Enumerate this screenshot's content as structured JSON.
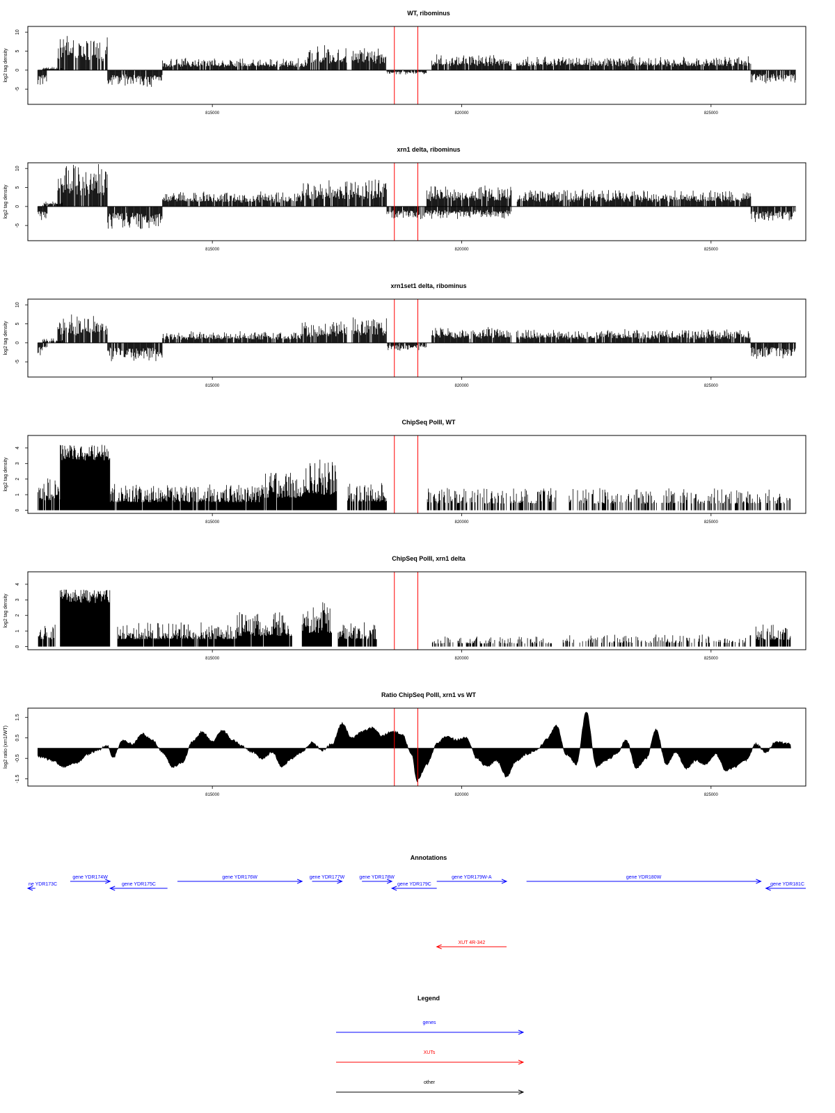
{
  "chart_data": [
    {
      "type": "bar",
      "title": "WT, ribominus",
      "ylabel": "log2 tag density",
      "ylim": [
        -9,
        11.5
      ],
      "yticks": [
        -5,
        0,
        5,
        10
      ],
      "ytick_labels": [
        "-5",
        "0",
        "5",
        "10"
      ],
      "xlim": [
        811300,
        826900
      ],
      "xticks": [
        815000,
        820000,
        825000
      ],
      "xtick_labels": [
        "815000",
        "820000",
        "825000"
      ],
      "markers": [
        818650,
        819120
      ],
      "marker_color": "#ff0000",
      "bar_color": "#000000",
      "forward_segments": [
        {
          "start": 811600,
          "end": 812000,
          "level": 0.6
        },
        {
          "start": 811900,
          "end": 812900,
          "level": 6.5
        },
        {
          "start": 814000,
          "end": 816900,
          "level": 2.2
        },
        {
          "start": 816900,
          "end": 817700,
          "level": 4.8
        },
        {
          "start": 817800,
          "end": 818500,
          "level": 4.8
        },
        {
          "start": 819400,
          "end": 821000,
          "level": 3.0
        },
        {
          "start": 821100,
          "end": 825800,
          "level": 2.6
        }
      ],
      "reverse_segments": [
        {
          "start": 811500,
          "end": 811700,
          "level": -3.0
        },
        {
          "start": 812900,
          "end": 814000,
          "level": -3.2
        },
        {
          "start": 818500,
          "end": 819300,
          "level": -0.8
        },
        {
          "start": 825800,
          "end": 826700,
          "level": -2.5
        }
      ]
    },
    {
      "type": "bar",
      "title": "xrn1 delta, ribominus",
      "ylabel": "log2 tag density",
      "ylim": [
        -9,
        11.5
      ],
      "yticks": [
        -5,
        0,
        5,
        10
      ],
      "ytick_labels": [
        "-5",
        "0",
        "5",
        "10"
      ],
      "xlim": [
        811300,
        826900
      ],
      "xticks": [
        815000,
        820000,
        825000
      ],
      "xtick_labels": [
        "815000",
        "820000",
        "825000"
      ],
      "markers": [
        818650,
        819120
      ],
      "marker_color": "#ff0000",
      "bar_color": "#000000",
      "forward_segments": [
        {
          "start": 811600,
          "end": 812000,
          "level": 1.0
        },
        {
          "start": 811900,
          "end": 812900,
          "level": 8.0
        },
        {
          "start": 814000,
          "end": 816800,
          "level": 2.8
        },
        {
          "start": 816800,
          "end": 817700,
          "level": 5.0
        },
        {
          "start": 817700,
          "end": 818500,
          "level": 5.2
        },
        {
          "start": 819300,
          "end": 821000,
          "level": 4.0
        },
        {
          "start": 821100,
          "end": 825800,
          "level": 3.2
        }
      ],
      "reverse_segments": [
        {
          "start": 811500,
          "end": 811700,
          "level": -3.0
        },
        {
          "start": 812900,
          "end": 814000,
          "level": -4.5
        },
        {
          "start": 818500,
          "end": 819300,
          "level": -2.5
        },
        {
          "start": 819300,
          "end": 821000,
          "level": -2.5
        },
        {
          "start": 825800,
          "end": 826700,
          "level": -3.0
        }
      ]
    },
    {
      "type": "bar",
      "title": "xrn1set1 delta, ribominus",
      "ylabel": "log2 tag density",
      "ylim": [
        -9,
        11.5
      ],
      "yticks": [
        -5,
        0,
        5,
        10
      ],
      "ytick_labels": [
        "-5",
        "0",
        "5",
        "10"
      ],
      "xlim": [
        811300,
        826900
      ],
      "xticks": [
        815000,
        820000,
        825000
      ],
      "xtick_labels": [
        "815000",
        "820000",
        "825000"
      ],
      "markers": [
        818650,
        819120
      ],
      "marker_color": "#ff0000",
      "bar_color": "#000000",
      "forward_segments": [
        {
          "start": 811600,
          "end": 812000,
          "level": 0.8
        },
        {
          "start": 811900,
          "end": 812900,
          "level": 5.5
        },
        {
          "start": 814000,
          "end": 816800,
          "level": 2.2
        },
        {
          "start": 816800,
          "end": 817700,
          "level": 4.2
        },
        {
          "start": 817800,
          "end": 818500,
          "level": 5.0
        },
        {
          "start": 819400,
          "end": 821000,
          "level": 3.0
        },
        {
          "start": 821100,
          "end": 825800,
          "level": 2.6
        }
      ],
      "reverse_segments": [
        {
          "start": 811500,
          "end": 811700,
          "level": -2.5
        },
        {
          "start": 812900,
          "end": 814000,
          "level": -3.5
        },
        {
          "start": 818500,
          "end": 819300,
          "level": -1.5
        },
        {
          "start": 825800,
          "end": 826700,
          "level": -3.0
        }
      ]
    },
    {
      "type": "bar",
      "title": "ChipSeq PolII, WT",
      "ylabel": "log2 tag density",
      "ylim": [
        -0.2,
        4.8
      ],
      "yticks": [
        0,
        1,
        2,
        3,
        4
      ],
      "ytick_labels": [
        "0",
        "1",
        "2",
        "3",
        "4"
      ],
      "xlim": [
        811300,
        826900
      ],
      "xticks": [
        815000,
        820000,
        825000
      ],
      "xtick_labels": [
        "815000",
        "820000",
        "825000"
      ],
      "markers": [
        818650,
        819120
      ],
      "marker_color": "#ff0000",
      "bar_color": "#000000",
      "segments": [
        {
          "start": 811500,
          "end": 811950,
          "level": 1.6,
          "fill": 0.9
        },
        {
          "start": 811950,
          "end": 812950,
          "level": 4.0,
          "fill": 1.0
        },
        {
          "start": 812950,
          "end": 816000,
          "level": 1.3,
          "fill": 0.95
        },
        {
          "start": 816000,
          "end": 816800,
          "level": 2.0,
          "fill": 0.95
        },
        {
          "start": 816800,
          "end": 817500,
          "level": 2.5,
          "fill": 1.0
        },
        {
          "start": 817700,
          "end": 818500,
          "level": 1.4,
          "fill": 0.75
        },
        {
          "start": 819300,
          "end": 821900,
          "level": 1.1,
          "fill": 0.55
        },
        {
          "start": 822100,
          "end": 826600,
          "level": 1.1,
          "fill": 0.5
        }
      ]
    },
    {
      "type": "bar",
      "title": "ChipSeq PolII, xrn1 delta",
      "ylabel": "log2 tag density",
      "ylim": [
        -0.2,
        4.8
      ],
      "yticks": [
        0,
        1,
        2,
        3,
        4
      ],
      "ytick_labels": [
        "0",
        "1",
        "2",
        "3",
        "4"
      ],
      "xlim": [
        811300,
        826900
      ],
      "xticks": [
        815000,
        820000,
        825000
      ],
      "xtick_labels": [
        "815000",
        "820000",
        "825000"
      ],
      "markers": [
        818650,
        819120
      ],
      "marker_color": "#ff0000",
      "bar_color": "#000000",
      "segments": [
        {
          "start": 811500,
          "end": 811850,
          "level": 1.2,
          "fill": 0.8
        },
        {
          "start": 811950,
          "end": 812950,
          "level": 3.5,
          "fill": 1.0
        },
        {
          "start": 813100,
          "end": 815500,
          "level": 1.2,
          "fill": 0.95
        },
        {
          "start": 815500,
          "end": 816600,
          "level": 1.7,
          "fill": 0.95
        },
        {
          "start": 816800,
          "end": 817400,
          "level": 2.2,
          "fill": 1.0
        },
        {
          "start": 817500,
          "end": 818300,
          "level": 1.2,
          "fill": 0.8
        },
        {
          "start": 819400,
          "end": 821800,
          "level": 0.5,
          "fill": 0.45
        },
        {
          "start": 822000,
          "end": 825800,
          "level": 0.6,
          "fill": 0.4
        },
        {
          "start": 825900,
          "end": 826600,
          "level": 1.1,
          "fill": 0.9
        }
      ]
    },
    {
      "type": "area",
      "title": "Ratio ChipSeq PolII, xrn1 vs WT",
      "ylabel": "log2 ratio (xrn1/WT)",
      "ylim": [
        -1.85,
        1.95
      ],
      "yticks": [
        -1.5,
        -0.5,
        0.5,
        1.5
      ],
      "ytick_labels": [
        "-1.5",
        "-0.5",
        "0.5",
        "1.5"
      ],
      "xlim": [
        811300,
        826900
      ],
      "xticks": [
        815000,
        820000,
        825000
      ],
      "xtick_labels": [
        "815000",
        "820000",
        "825000"
      ],
      "markers": [
        818650,
        819120
      ],
      "marker_color": "#ff0000",
      "fill_color": "#000000",
      "x": [
        811500,
        811800,
        812000,
        812300,
        812500,
        812700,
        812900,
        813000,
        813200,
        813400,
        813600,
        813800,
        814000,
        814200,
        814400,
        814600,
        814800,
        815000,
        815200,
        815400,
        815600,
        815800,
        816000,
        816200,
        816400,
        816600,
        816800,
        817000,
        817200,
        817400,
        817600,
        817800,
        818000,
        818200,
        818400,
        818600,
        818800,
        819000,
        819100,
        819300,
        819500,
        819700,
        819900,
        820100,
        820300,
        820500,
        820700,
        820900,
        821100,
        821300,
        821500,
        821700,
        821900,
        822100,
        822300,
        822500,
        822700,
        822900,
        823100,
        823300,
        823500,
        823700,
        823900,
        824100,
        824300,
        824500,
        824700,
        824900,
        825100,
        825300,
        825500,
        825700,
        825900,
        826100,
        826300,
        826600
      ],
      "y": [
        -0.4,
        -0.6,
        -0.9,
        -0.7,
        -0.3,
        -0.1,
        0.15,
        -0.5,
        0.4,
        0.2,
        0.7,
        0.4,
        -0.2,
        -0.9,
        -0.7,
        0.3,
        0.8,
        0.3,
        0.9,
        0.4,
        0.1,
        -0.2,
        -0.5,
        -0.2,
        -0.9,
        -0.5,
        -0.2,
        0.3,
        -0.1,
        0.2,
        1.2,
        0.5,
        0.8,
        1.0,
        0.6,
        0.8,
        0.7,
        -0.3,
        -1.6,
        -0.8,
        0.2,
        0.6,
        0.4,
        0.5,
        -0.5,
        -0.9,
        -0.6,
        -1.4,
        -0.6,
        -0.3,
        -0.1,
        0.4,
        1.1,
        -0.3,
        -0.8,
        1.8,
        -0.9,
        -0.6,
        -0.3,
        0.4,
        -1.0,
        -0.5,
        0.9,
        -0.8,
        -0.2,
        -1.0,
        -0.6,
        -0.8,
        -0.3,
        -1.1,
        -0.9,
        -0.6,
        0.2,
        -0.2,
        0.3,
        0.2
      ]
    }
  ],
  "annotations": {
    "title": "Annotations",
    "genes": [
      {
        "label": "ne YDR173C",
        "start": 811300,
        "end": 811450,
        "strand": "-",
        "row": "lower"
      },
      {
        "label": "gene YDR174W",
        "start": 812150,
        "end": 812950,
        "strand": "+",
        "row": "upper"
      },
      {
        "label": "gene YDR175C",
        "start": 812950,
        "end": 814100,
        "strand": "-",
        "row": "lower"
      },
      {
        "label": "gene YDR176W",
        "start": 814300,
        "end": 816800,
        "strand": "+",
        "row": "upper"
      },
      {
        "label": "gene YDR177W",
        "start": 817000,
        "end": 817600,
        "strand": "+",
        "row": "upper"
      },
      {
        "label": "gene YDR178W",
        "start": 818000,
        "end": 818600,
        "strand": "+",
        "row": "upper"
      },
      {
        "label": "gene YDR179C",
        "start": 818600,
        "end": 819500,
        "strand": "-",
        "row": "lower"
      },
      {
        "label": "gene YDR179W-A",
        "start": 819500,
        "end": 820900,
        "strand": "+",
        "row": "upper"
      },
      {
        "label": "gene YDR180W",
        "start": 821300,
        "end": 826000,
        "strand": "+",
        "row": "upper"
      },
      {
        "label": "gene YDR181C",
        "start": 826100,
        "end": 826900,
        "strand": "-",
        "row": "lower"
      }
    ],
    "xuts": [
      {
        "label": "XUT 4R-342",
        "start": 819500,
        "end": 820900,
        "strand": "-"
      }
    ]
  },
  "legend": {
    "title": "Legend",
    "items": [
      {
        "label": "genes",
        "color": "#0000ff"
      },
      {
        "label": "XUTs",
        "color": "#ff0000"
      },
      {
        "label": "other",
        "color": "#000000"
      }
    ]
  },
  "colors": {
    "gene": "#0000ff",
    "xut": "#ff0000",
    "other": "#000000",
    "marker": "#ff0000"
  }
}
